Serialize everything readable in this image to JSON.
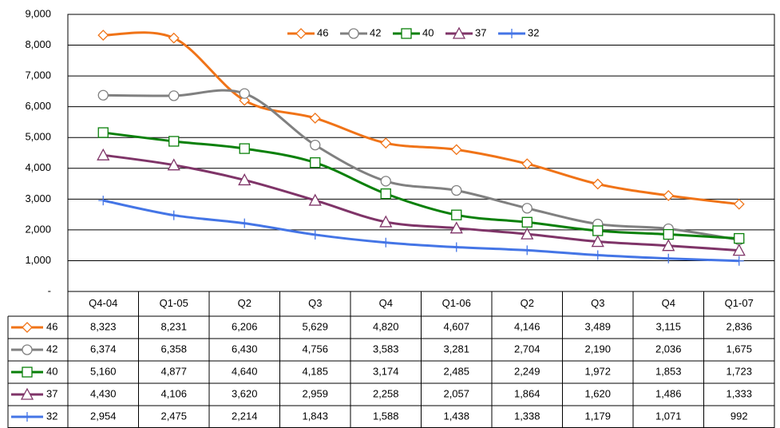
{
  "chart_data": {
    "type": "line",
    "categories": [
      "Q4-04",
      "Q1-05",
      "Q2",
      "Q3",
      "Q4",
      "Q1-06",
      "Q2",
      "Q3",
      "Q4",
      "Q1-07"
    ],
    "ylim": [
      0,
      9000
    ],
    "yticks": [
      {
        "value": 0,
        "label": "-"
      },
      {
        "value": 1000,
        "label": "1,000"
      },
      {
        "value": 2000,
        "label": "2,000"
      },
      {
        "value": 3000,
        "label": "3,000"
      },
      {
        "value": 4000,
        "label": "4,000"
      },
      {
        "value": 5000,
        "label": "5,000"
      },
      {
        "value": 6000,
        "label": "6,000"
      },
      {
        "value": 7000,
        "label": "7,000"
      },
      {
        "value": 8000,
        "label": "8,000"
      },
      {
        "value": 9000,
        "label": "9,000"
      }
    ],
    "grid": true,
    "legend": "top",
    "series": [
      {
        "name": "46",
        "color": "#f07317",
        "marker": "diamond",
        "values": [
          8323,
          8231,
          6206,
          5629,
          4820,
          4607,
          4146,
          3489,
          3115,
          2836
        ],
        "value_labels": [
          "8,323",
          "8,231",
          "6,206",
          "5,629",
          "4,820",
          "4,607",
          "4,146",
          "3,489",
          "3,115",
          "2,836"
        ]
      },
      {
        "name": "42",
        "color": "#808080",
        "marker": "circle",
        "values": [
          6374,
          6358,
          6430,
          4756,
          3583,
          3281,
          2704,
          2190,
          2036,
          1675
        ],
        "value_labels": [
          "6,374",
          "6,358",
          "6,430",
          "4,756",
          "3,583",
          "3,281",
          "2,704",
          "2,190",
          "2,036",
          "1,675"
        ]
      },
      {
        "name": "40",
        "color": "#098009",
        "marker": "square",
        "values": [
          5160,
          4877,
          4640,
          4185,
          3174,
          2485,
          2249,
          1972,
          1853,
          1723
        ],
        "value_labels": [
          "5,160",
          "4,877",
          "4,640",
          "4,185",
          "3,174",
          "2,485",
          "2,249",
          "1,972",
          "1,853",
          "1,723"
        ]
      },
      {
        "name": "37",
        "color": "#7f3468",
        "marker": "triangle",
        "values": [
          4430,
          4106,
          3620,
          2959,
          2258,
          2057,
          1864,
          1620,
          1486,
          1333
        ],
        "value_labels": [
          "4,430",
          "4,106",
          "3,620",
          "2,959",
          "2,258",
          "2,057",
          "1,864",
          "1,620",
          "1,486",
          "1,333"
        ]
      },
      {
        "name": "32",
        "color": "#4475e6",
        "marker": "plus",
        "values": [
          2954,
          2475,
          2214,
          1843,
          1588,
          1438,
          1338,
          1179,
          1071,
          992
        ],
        "value_labels": [
          "2,954",
          "2,475",
          "2,214",
          "1,843",
          "1,588",
          "1,438",
          "1,338",
          "1,179",
          "1,071",
          "992"
        ]
      }
    ]
  }
}
